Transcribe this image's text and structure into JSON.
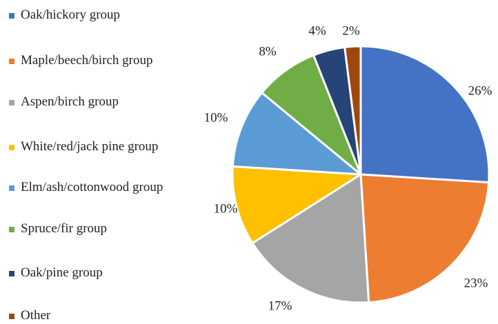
{
  "chart_data": {
    "type": "pie",
    "title": "",
    "legend_position": "left",
    "slices": [
      {
        "label": "Oak/hickory group",
        "value": 26,
        "value_label": "26%",
        "color": "#4472C4"
      },
      {
        "label": "Maple/beech/birch group",
        "value": 23,
        "value_label": "23%",
        "color": "#ED7D31"
      },
      {
        "label": "Aspen/birch group",
        "value": 17,
        "value_label": "17%",
        "color": "#A5A5A5"
      },
      {
        "label": "White/red/jack pine group",
        "value": 10,
        "value_label": "10%",
        "color": "#FFC000"
      },
      {
        "label": "Elm/ash/cottonwood group",
        "value": 10,
        "value_label": "10%",
        "color": "#5B9BD5"
      },
      {
        "label": "Spruce/fir group",
        "value": 8,
        "value_label": "8%",
        "color": "#70AD47"
      },
      {
        "label": "Oak/pine group",
        "value": 4,
        "value_label": "4%",
        "color": "#264478"
      },
      {
        "label": "Other",
        "value": 2,
        "value_label": "2%",
        "color": "#9E480E"
      }
    ]
  }
}
